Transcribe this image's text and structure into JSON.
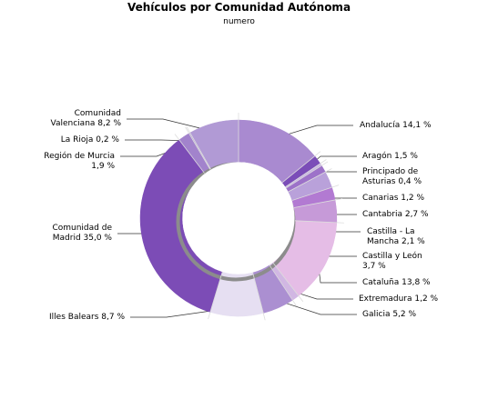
{
  "chart_data": {
    "type": "pie",
    "title": "Vehículos por Comunidad Autónoma",
    "subtitle": "numero",
    "series": [
      {
        "name": "numero",
        "values": [
          14.1,
          1.5,
          0.4,
          1.2,
          2.7,
          2.1,
          3.7,
          13.8,
          1.2,
          5.2,
          8.7,
          35.0,
          1.9,
          0.2,
          8.2
        ]
      }
    ],
    "categories": [
      "Andalucía",
      "Aragón",
      "Principado de Asturias",
      "Canarias",
      "Cantabria",
      "Castilla - La Mancha",
      "Castilla y León",
      "Cataluña",
      "Extremadura",
      "Galicia",
      "Illes Balears",
      "Comunidad de Madrid",
      "Región de Murcia",
      "La Rioja",
      "Comunidad Valenciana"
    ],
    "slices": [
      {
        "label": "Andalucía 14,1 %",
        "value": 14.1,
        "color": "#a98ad0"
      },
      {
        "label": "Aragón 1,5 %",
        "value": 1.5,
        "color": "#7b4db8"
      },
      {
        "label": "Principado de\nAsturias 0,4 %",
        "value": 0.4,
        "color": "#c9b7e2"
      },
      {
        "label": "Canarias 1,2 %",
        "value": 1.2,
        "color": "#9d72c9"
      },
      {
        "label": "Cantabria 2,7 %",
        "value": 2.7,
        "color": "#b9a1da"
      },
      {
        "label": "Castilla - La\nMancha 2,1 %",
        "value": 2.1,
        "color": "#b27ad2"
      },
      {
        "label": "Castilla y León\n3,7 %",
        "value": 3.7,
        "color": "#c69ad8"
      },
      {
        "label": "Cataluña 13,8 %",
        "value": 13.8,
        "color": "#e5bde6"
      },
      {
        "label": "Extremadura 1,2 %",
        "value": 1.2,
        "color": "#d1b7e3"
      },
      {
        "label": "Galicia 5,2 %",
        "value": 5.2,
        "color": "#ab8fd1"
      },
      {
        "label": "Illes Balears 8,7 %",
        "value": 8.7,
        "color": "#e6dff2"
      },
      {
        "label": "Comunidad de\nMadrid 35,0 %",
        "value": 35.0,
        "color": "#7c4cb6"
      },
      {
        "label": "Región de Murcia\n1,9 %",
        "value": 1.9,
        "color": "#a283cc"
      },
      {
        "label": "La Rioja 0,2 %",
        "value": 0.2,
        "color": "#b5a3d8"
      },
      {
        "label": "Comunidad\nValenciana 8,2 %",
        "value": 8.2,
        "color": "#b19ad5"
      }
    ],
    "hole": "donut",
    "start": "top",
    "direction": "clockwise",
    "legend": "none"
  }
}
